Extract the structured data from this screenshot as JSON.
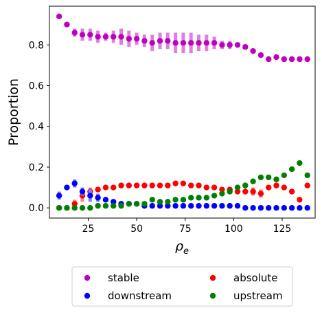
{
  "chart_data": {
    "type": "scatter",
    "title": "",
    "xlabel": "ρ",
    "xlabel_sub": "e",
    "ylabel": "Proportion",
    "xlim": [
      5,
      142
    ],
    "ylim": [
      -0.05,
      0.99
    ],
    "xticks": [
      25,
      50,
      75,
      100,
      125
    ],
    "yticks": [
      0.0,
      0.2,
      0.4,
      0.6,
      0.8
    ],
    "ytick_labels": [
      "0.0",
      "0.2",
      "0.4",
      "0.6",
      "0.8"
    ],
    "grid": false,
    "legend": {
      "placement": "below",
      "columns": 2
    },
    "x": [
      10,
      14,
      18,
      22,
      26,
      30,
      34,
      38,
      42,
      46,
      50,
      54,
      58,
      62,
      66,
      70,
      74,
      78,
      82,
      86,
      90,
      94,
      98,
      102,
      106,
      110,
      114,
      118,
      122,
      126,
      130,
      134,
      138
    ],
    "series": [
      {
        "name": "stable",
        "color": "#bf00bf",
        "errorbar_color": "#de7fde",
        "values": [
          0.94,
          0.9,
          0.86,
          0.85,
          0.85,
          0.84,
          0.84,
          0.84,
          0.84,
          0.83,
          0.83,
          0.82,
          0.81,
          0.82,
          0.82,
          0.81,
          0.81,
          0.81,
          0.81,
          0.81,
          0.81,
          0.8,
          0.8,
          0.8,
          0.79,
          0.77,
          0.75,
          0.73,
          0.74,
          0.73,
          0.73,
          0.73,
          0.73
        ],
        "err": [
          0.01,
          0.01,
          0.02,
          0.03,
          0.03,
          0.03,
          0.02,
          0.03,
          0.04,
          0.04,
          0.03,
          0.03,
          0.04,
          0.04,
          0.04,
          0.05,
          0.05,
          0.05,
          0.04,
          0.04,
          0.03,
          0.02,
          0.02,
          0.01,
          0.01,
          0.01,
          0.01,
          0.01,
          0.01,
          0.01,
          0.01,
          0.01,
          0.01
        ]
      },
      {
        "name": "absolute",
        "color": "#ff0000",
        "errorbar_color": "#ff8080",
        "values": [
          0.0,
          0.0,
          0.02,
          0.06,
          0.08,
          0.09,
          0.1,
          0.1,
          0.11,
          0.11,
          0.11,
          0.11,
          0.11,
          0.11,
          0.11,
          0.12,
          0.12,
          0.11,
          0.11,
          0.1,
          0.1,
          0.09,
          0.09,
          0.08,
          0.08,
          0.08,
          0.07,
          0.1,
          0.11,
          0.1,
          0.08,
          0.04,
          0.11
        ],
        "err": [
          0.0,
          0.0,
          0.02,
          0.03,
          0.02,
          0.01,
          0.01,
          0.01,
          0.01,
          0.01,
          0.01,
          0.01,
          0.01,
          0.01,
          0.01,
          0.01,
          0.01,
          0.01,
          0.01,
          0.01,
          0.01,
          0.01,
          0.01,
          0.01,
          0.01,
          0.02,
          0.02,
          0.01,
          0.01,
          0.01,
          0.01,
          0.01,
          0.01
        ]
      },
      {
        "name": "downstream",
        "color": "#0000ff",
        "errorbar_color": "#8080ff",
        "values": [
          0.06,
          0.1,
          0.12,
          0.08,
          0.06,
          0.05,
          0.04,
          0.03,
          0.02,
          0.02,
          0.02,
          0.01,
          0.01,
          0.01,
          0.01,
          0.01,
          0.01,
          0.01,
          0.01,
          0.01,
          0.01,
          0.01,
          0.01,
          0.01,
          0.0,
          0.0,
          0.0,
          0.0,
          0.0,
          0.0,
          0.0,
          0.0,
          0.0
        ],
        "err": [
          0.02,
          0.01,
          0.02,
          0.02,
          0.03,
          0.02,
          0.01,
          0.01,
          0.01,
          0.01,
          0.01,
          0.0,
          0.0,
          0.0,
          0.0,
          0.0,
          0.0,
          0.0,
          0.0,
          0.0,
          0.0,
          0.0,
          0.0,
          0.0,
          0.0,
          0.0,
          0.0,
          0.0,
          0.0,
          0.0,
          0.0,
          0.0,
          0.0
        ]
      },
      {
        "name": "upstream",
        "color": "#008000",
        "errorbar_color": "#80c080",
        "values": [
          0.0,
          0.0,
          0.0,
          0.0,
          0.0,
          0.01,
          0.01,
          0.01,
          0.01,
          0.02,
          0.02,
          0.02,
          0.04,
          0.03,
          0.03,
          0.04,
          0.04,
          0.05,
          0.05,
          0.05,
          0.06,
          0.07,
          0.08,
          0.1,
          0.11,
          0.13,
          0.15,
          0.15,
          0.14,
          0.16,
          0.19,
          0.22,
          0.16
        ],
        "err": [
          0.0,
          0.0,
          0.0,
          0.0,
          0.0,
          0.0,
          0.0,
          0.0,
          0.0,
          0.0,
          0.0,
          0.0,
          0.0,
          0.0,
          0.0,
          0.0,
          0.0,
          0.0,
          0.0,
          0.0,
          0.0,
          0.01,
          0.01,
          0.01,
          0.01,
          0.01,
          0.01,
          0.01,
          0.01,
          0.01,
          0.01,
          0.01,
          0.01
        ]
      }
    ],
    "legend_order": [
      "stable",
      "absolute",
      "downstream",
      "upstream"
    ]
  }
}
